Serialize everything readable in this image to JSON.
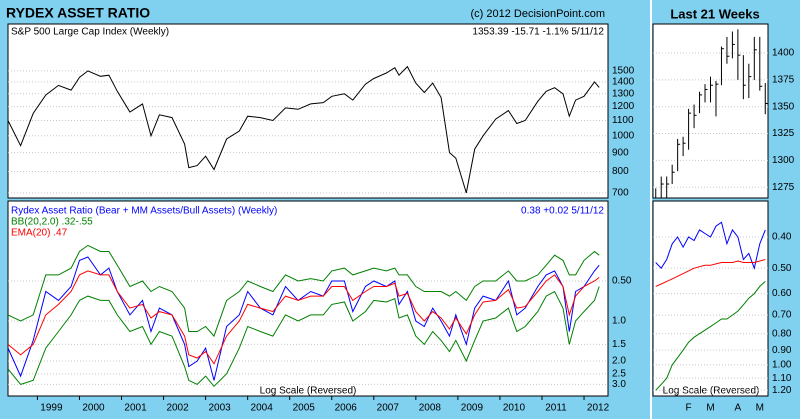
{
  "chart_data": [
    {
      "type": "line",
      "title": "RYDEX ASSET RATIO",
      "source": "(c) 2012 DecisionPoint.com",
      "label": "S&P 500 Large Cap Index (Weekly)",
      "readout": "1353.39  -15.71  -1.1%  5/11/12",
      "log": true,
      "ylim": [
        678,
        2010
      ],
      "yticks": [
        700,
        800,
        900,
        1000,
        1100,
        1200,
        1300,
        1400,
        1500
      ],
      "grid": true,
      "xlim": [
        1998.3,
        2012.57
      ],
      "x": [
        1998.3,
        1998.6,
        1998.9,
        1999.2,
        1999.5,
        1999.8,
        2000.0,
        2000.2,
        2000.5,
        2000.7,
        2000.9,
        2001.2,
        2001.5,
        2001.7,
        2001.9,
        2002.2,
        2002.5,
        2002.6,
        2002.8,
        2003.0,
        2003.2,
        2003.5,
        2003.8,
        2004.0,
        2004.3,
        2004.6,
        2004.9,
        2005.2,
        2005.5,
        2005.8,
        2006.0,
        2006.3,
        2006.5,
        2006.8,
        2007.0,
        2007.3,
        2007.5,
        2007.6,
        2007.8,
        2008.0,
        2008.2,
        2008.4,
        2008.6,
        2008.8,
        2008.95,
        2009.2,
        2009.4,
        2009.6,
        2009.9,
        2010.2,
        2010.4,
        2010.6,
        2010.9,
        2011.1,
        2011.3,
        2011.5,
        2011.65,
        2011.8,
        2012.0,
        2012.25,
        2012.36
      ],
      "series": [
        {
          "color": "#000000",
          "values": [
            1100,
            940,
            1150,
            1290,
            1370,
            1330,
            1440,
            1500,
            1450,
            1460,
            1320,
            1160,
            1220,
            1000,
            1140,
            1120,
            950,
            820,
            830,
            880,
            810,
            980,
            1030,
            1130,
            1120,
            1100,
            1190,
            1180,
            1220,
            1230,
            1280,
            1300,
            1250,
            1380,
            1430,
            1480,
            1530,
            1460,
            1540,
            1390,
            1310,
            1390,
            1270,
            900,
            870,
            700,
            920,
            1000,
            1110,
            1170,
            1080,
            1100,
            1240,
            1320,
            1350,
            1300,
            1130,
            1250,
            1280,
            1400,
            1353
          ]
        }
      ]
    },
    {
      "type": "line",
      "readout": "0.38  +0.02  5/11/12",
      "annotation": "Log Scale (Reversed)",
      "log": true,
      "reversed": true,
      "ylim": [
        0.125,
        3.67
      ],
      "yticks": [
        {
          "value": 0.5,
          "label": "0.50"
        },
        {
          "value": 1,
          "label": "1.0"
        },
        1.5,
        {
          "value": 2,
          "label": "2.0"
        },
        2.5,
        {
          "value": 3,
          "label": "3.0"
        }
      ],
      "grid": true,
      "xlim": [
        1998.3,
        2012.57
      ],
      "xticks": [
        1999,
        2000,
        2001,
        2002,
        2003,
        2004,
        2005,
        2006,
        2007,
        2008,
        2009,
        2010,
        2011,
        2012
      ],
      "x": [
        1998.3,
        1998.6,
        1998.9,
        1999.2,
        1999.5,
        1999.8,
        2000.0,
        2000.2,
        2000.5,
        2000.7,
        2000.9,
        2001.2,
        2001.5,
        2001.7,
        2001.9,
        2002.2,
        2002.5,
        2002.6,
        2002.8,
        2003.0,
        2003.2,
        2003.5,
        2003.8,
        2004.0,
        2004.3,
        2004.6,
        2004.9,
        2005.2,
        2005.5,
        2005.8,
        2006.0,
        2006.3,
        2006.5,
        2006.8,
        2007.0,
        2007.3,
        2007.5,
        2007.6,
        2007.8,
        2008.0,
        2008.2,
        2008.4,
        2008.6,
        2008.8,
        2008.95,
        2009.2,
        2009.4,
        2009.6,
        2009.9,
        2010.2,
        2010.4,
        2010.6,
        2010.9,
        2011.1,
        2011.3,
        2011.5,
        2011.65,
        2011.8,
        2012.0,
        2012.25,
        2012.36
      ],
      "series": [
        {
          "name": "Rydex Asset Ratio (Bear + MM Assets/Bull Assets) (Weekly)",
          "color": "#0000ff",
          "values": [
            1.6,
            2.6,
            1.4,
            0.6,
            0.7,
            0.55,
            0.35,
            0.33,
            0.45,
            0.4,
            0.6,
            0.9,
            0.7,
            1.2,
            0.8,
            0.9,
            1.5,
            2.2,
            2.0,
            1.6,
            2.8,
            1.1,
            0.9,
            0.6,
            0.8,
            0.9,
            0.55,
            0.7,
            0.6,
            0.65,
            0.5,
            0.5,
            0.85,
            0.55,
            0.5,
            0.55,
            0.5,
            0.75,
            0.6,
            1.0,
            1.1,
            0.8,
            1.0,
            1.3,
            0.9,
            1.5,
            0.8,
            0.65,
            0.7,
            0.5,
            0.9,
            0.8,
            0.55,
            0.45,
            0.42,
            0.55,
            1.2,
            0.6,
            0.55,
            0.42,
            0.38
          ]
        },
        {
          "name": "BB(20,2.0) .32-.55",
          "color": "#008000",
          "values": [
            0.9,
            1.0,
            0.9,
            0.45,
            0.45,
            0.4,
            0.3,
            0.27,
            0.3,
            0.3,
            0.38,
            0.55,
            0.5,
            0.6,
            0.55,
            0.6,
            0.8,
            1.2,
            1.2,
            1.1,
            1.3,
            0.7,
            0.6,
            0.5,
            0.55,
            0.6,
            0.45,
            0.5,
            0.48,
            0.5,
            0.42,
            0.4,
            0.45,
            0.42,
            0.4,
            0.42,
            0.4,
            0.45,
            0.45,
            0.55,
            0.6,
            0.6,
            0.6,
            0.65,
            0.6,
            0.7,
            0.55,
            0.5,
            0.5,
            0.42,
            0.5,
            0.5,
            0.45,
            0.38,
            0.32,
            0.35,
            0.45,
            0.45,
            0.35,
            0.3,
            0.32
          ],
          "lower": [
            2.3,
            3.0,
            2.8,
            1.6,
            1.2,
            0.9,
            0.7,
            0.65,
            0.7,
            0.7,
            0.9,
            1.2,
            1.1,
            1.5,
            1.2,
            1.3,
            2.2,
            2.8,
            3.0,
            2.6,
            3.1,
            2.5,
            1.6,
            1.1,
            1.2,
            1.3,
            0.9,
            1.0,
            0.9,
            0.9,
            0.75,
            0.72,
            1.0,
            0.85,
            0.7,
            0.72,
            0.68,
            0.95,
            0.9,
            1.3,
            1.5,
            1.2,
            1.4,
            1.7,
            1.4,
            2.0,
            1.4,
            1.0,
            0.95,
            0.8,
            1.2,
            1.1,
            0.85,
            0.65,
            0.6,
            0.8,
            1.5,
            1.0,
            0.85,
            0.7,
            0.55
          ]
        },
        {
          "name": "EMA(20) .47",
          "color": "#ff0000",
          "values": [
            1.5,
            1.8,
            1.5,
            0.9,
            0.75,
            0.6,
            0.45,
            0.42,
            0.45,
            0.45,
            0.6,
            0.8,
            0.75,
            0.95,
            0.85,
            0.9,
            1.3,
            1.8,
            1.9,
            1.7,
            2.1,
            1.3,
            1.0,
            0.75,
            0.8,
            0.85,
            0.65,
            0.7,
            0.65,
            0.65,
            0.55,
            0.55,
            0.7,
            0.6,
            0.55,
            0.55,
            0.52,
            0.65,
            0.62,
            0.85,
            1.0,
            0.85,
            0.95,
            1.15,
            0.95,
            1.25,
            0.9,
            0.72,
            0.7,
            0.58,
            0.8,
            0.78,
            0.6,
            0.5,
            0.45,
            0.55,
            0.9,
            0.65,
            0.55,
            0.5,
            0.47
          ]
        }
      ]
    },
    {
      "type": "ohlc",
      "title": "Last 21 Weeks",
      "ylim": [
        1265,
        1427
      ],
      "yticks": [
        1275,
        1300,
        1325,
        1350,
        1375,
        1400
      ],
      "grid": true,
      "color": "#000000",
      "high": [
        1274,
        1285,
        1285,
        1296,
        1320,
        1322,
        1348,
        1352,
        1364,
        1371,
        1378,
        1374,
        1406,
        1415,
        1420,
        1422,
        1398,
        1390,
        1415,
        1415,
        1372
      ],
      "low": [
        1260,
        1260,
        1263,
        1278,
        1290,
        1304,
        1310,
        1330,
        1344,
        1354,
        1354,
        1341,
        1370,
        1390,
        1395,
        1375,
        1357,
        1358,
        1375,
        1365,
        1343
      ],
      "close": [
        1265,
        1278,
        1278,
        1289,
        1315,
        1316,
        1344,
        1342,
        1361,
        1366,
        1370,
        1371,
        1404,
        1397,
        1408,
        1398,
        1370,
        1378,
        1403,
        1369,
        1353
      ]
    },
    {
      "type": "line",
      "annotation": "Log Scale (Reversed)",
      "log": true,
      "reversed": true,
      "ylim": [
        0.309,
        1.25
      ],
      "yticks": [
        {
          "value": 0.4,
          "label": "0.40"
        },
        {
          "value": 0.5,
          "label": "0.50"
        },
        {
          "value": 0.6,
          "label": "0.60"
        },
        {
          "value": 0.7,
          "label": "0.70"
        },
        {
          "value": 0.8,
          "label": "0.80"
        },
        {
          "value": 0.9,
          "label": "0.90"
        },
        {
          "value": 1,
          "label": "1.00"
        },
        {
          "value": 1.1,
          "label": "1.10"
        },
        {
          "value": 1.2,
          "label": "1.20"
        }
      ],
      "grid": true,
      "categories": [
        null,
        null,
        null,
        null,
        null,
        null,
        "F",
        null,
        null,
        null,
        "M",
        null,
        null,
        null,
        null,
        "A",
        null,
        null,
        null,
        "M",
        null
      ],
      "series": [
        {
          "color": "#0000ff",
          "values": [
            0.48,
            0.5,
            0.47,
            0.42,
            0.4,
            0.43,
            0.4,
            0.41,
            0.38,
            0.39,
            0.4,
            0.37,
            0.36,
            0.42,
            0.38,
            0.4,
            0.47,
            0.45,
            0.5,
            0.42,
            0.38
          ]
        },
        {
          "color": "#ff0000",
          "values": [
            0.57,
            0.56,
            0.55,
            0.54,
            0.53,
            0.52,
            0.51,
            0.5,
            0.495,
            0.49,
            0.49,
            0.485,
            0.48,
            0.48,
            0.48,
            0.475,
            0.48,
            0.48,
            0.48,
            0.475,
            0.47
          ]
        },
        {
          "color": "#008000",
          "values": [
            1.2,
            1.15,
            1.1,
            1.0,
            0.95,
            0.9,
            0.85,
            0.82,
            0.8,
            0.78,
            0.76,
            0.74,
            0.72,
            0.72,
            0.7,
            0.68,
            0.65,
            0.62,
            0.6,
            0.57,
            0.55
          ]
        }
      ]
    }
  ]
}
